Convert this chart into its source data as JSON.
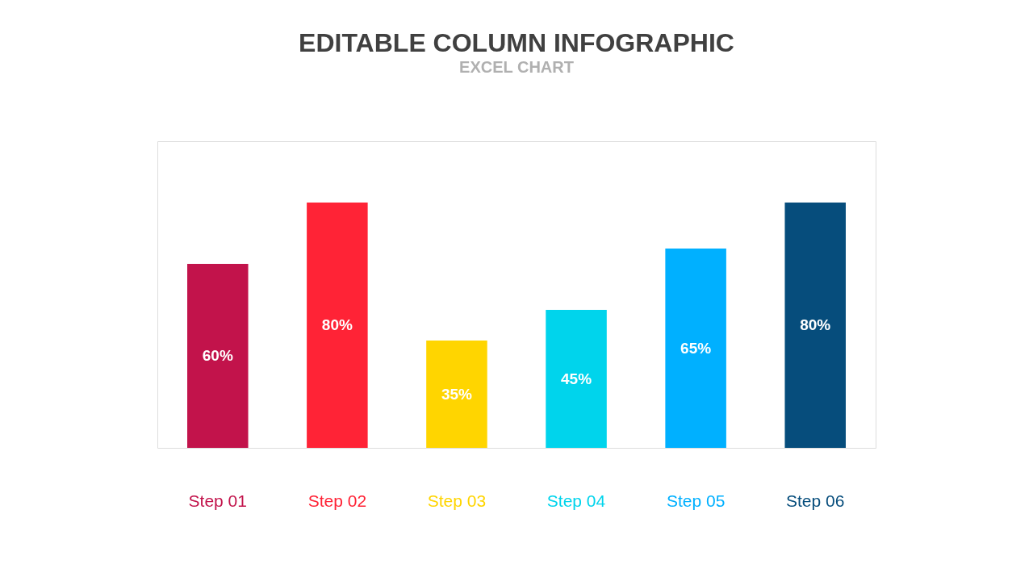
{
  "chart_data": {
    "type": "bar",
    "title": "EDITABLE COLUMN INFOGRAPHIC",
    "subtitle": "EXCEL CHART",
    "categories": [
      "Step 01",
      "Step 02",
      "Step 03",
      "Step 04",
      "Step 05",
      "Step 06"
    ],
    "values": [
      60,
      80,
      35,
      45,
      65,
      80
    ],
    "colors": [
      "#c2134b",
      "#ff2336",
      "#ffd500",
      "#00d4ec",
      "#00b0ff",
      "#064d7c"
    ],
    "value_labels": [
      "60%",
      "80%",
      "35%",
      "45%",
      "65%",
      "80%"
    ],
    "ylim": [
      0,
      100
    ],
    "tick_labels": "x",
    "grid": false
  }
}
